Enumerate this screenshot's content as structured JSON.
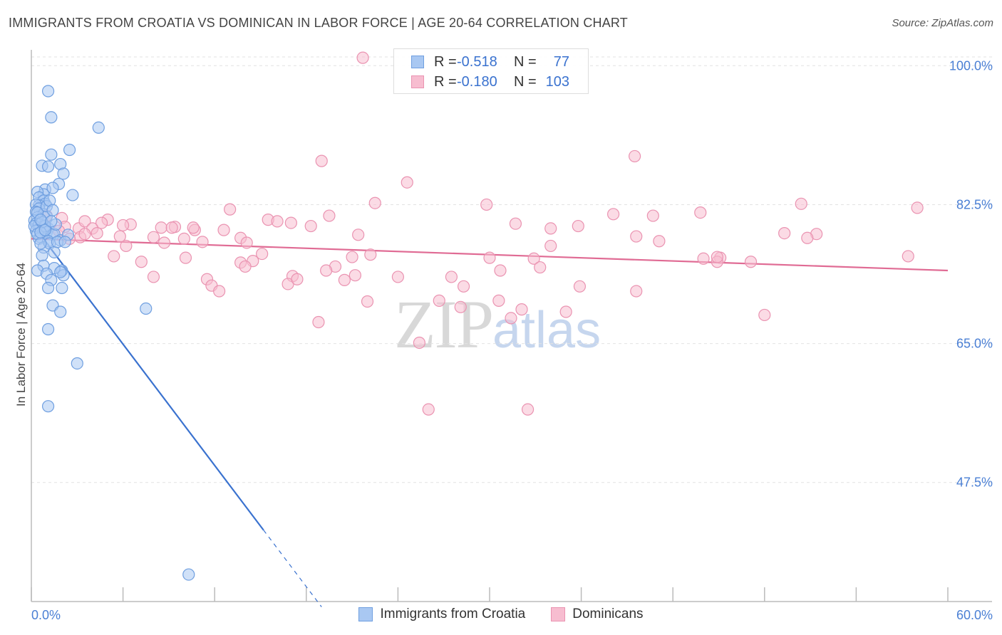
{
  "title": "IMMIGRANTS FROM CROATIA VS DOMINICAN IN LABOR FORCE | AGE 20-64 CORRELATION CHART",
  "source": "Source: ZipAtlas.com",
  "watermark": {
    "zip": "ZIP",
    "atlas": "atlas"
  },
  "legend": {
    "r_label": "R =",
    "n_label": "N =",
    "croatia": {
      "r": "-0.518",
      "n": "77"
    },
    "dominican": {
      "r": "-0.180",
      "n": "103"
    }
  },
  "colors": {
    "croatia_fill": "#a9c8f2",
    "croatia_stroke": "#6f9fe0",
    "croatia_line": "#3a72cf",
    "dominican_fill": "#f7bdd0",
    "dominican_stroke": "#ea93b1",
    "dominican_line": "#e06b94",
    "tick": "#4a7fd4"
  },
  "chart_data": {
    "type": "scatter",
    "title": "IMMIGRANTS FROM CROATIA VS DOMINICAN IN LABOR FORCE | AGE 20-64 CORRELATION CHART",
    "xlabel": "",
    "ylabel": "In Labor Force | Age 20-64",
    "xlim": [
      0,
      60
    ],
    "ylim": [
      32.5,
      102
    ],
    "x_ticks": [
      0,
      6,
      12,
      18,
      24,
      30,
      36,
      42,
      48,
      54,
      60
    ],
    "x_tick_labels": [
      {
        "value": 0,
        "label": "0.0%"
      },
      {
        "value": 60,
        "label": "60.0%"
      }
    ],
    "y_ticks": [
      {
        "value": 100,
        "label": "100.0%"
      },
      {
        "value": 82.5,
        "label": "82.5%"
      },
      {
        "value": 65,
        "label": "65.0%"
      },
      {
        "value": 47.5,
        "label": "47.5%"
      }
    ],
    "series": [
      {
        "name": "Immigrants from Croatia",
        "r": -0.518,
        "n": 77,
        "trend": {
          "x0": 0,
          "y0": 80.2,
          "x1": 15.2,
          "y1": 41.5,
          "dash_to_x": 19
        },
        "points": [
          [
            1.1,
            96.8
          ],
          [
            1.3,
            93.5
          ],
          [
            4.4,
            92.2
          ],
          [
            2.5,
            89.4
          ],
          [
            1.3,
            88.8
          ],
          [
            0.7,
            87.4
          ],
          [
            1.1,
            87.3
          ],
          [
            1.9,
            87.6
          ],
          [
            2.1,
            86.4
          ],
          [
            1.8,
            85.1
          ],
          [
            0.9,
            84.4
          ],
          [
            2.7,
            83.7
          ],
          [
            0.8,
            83.8
          ],
          [
            1.4,
            84.6
          ],
          [
            0.4,
            84.1
          ],
          [
            0.5,
            83.4
          ],
          [
            0.8,
            83.0
          ],
          [
            0.9,
            82.6
          ],
          [
            0.5,
            82.4
          ],
          [
            0.3,
            82.5
          ],
          [
            0.5,
            82.0
          ],
          [
            0.3,
            81.6
          ],
          [
            0.8,
            81.3
          ],
          [
            1.0,
            81.0
          ],
          [
            0.4,
            80.9
          ],
          [
            0.2,
            80.5
          ],
          [
            0.3,
            80.1
          ],
          [
            0.5,
            80.0
          ],
          [
            0.8,
            79.8
          ],
          [
            1.1,
            79.5
          ],
          [
            0.5,
            79.4
          ],
          [
            0.3,
            79.2
          ],
          [
            1.0,
            79.0
          ],
          [
            1.4,
            78.7
          ],
          [
            0.6,
            78.4
          ],
          [
            1.5,
            78.8
          ],
          [
            0.5,
            78.2
          ],
          [
            0.2,
            79.8
          ],
          [
            0.4,
            78.8
          ],
          [
            1.1,
            77.9
          ],
          [
            0.9,
            79.8
          ],
          [
            0.7,
            80.3
          ],
          [
            0.4,
            81.5
          ],
          [
            1.0,
            82.3
          ],
          [
            1.2,
            83.0
          ],
          [
            1.6,
            80.0
          ],
          [
            0.6,
            80.6
          ],
          [
            1.9,
            78.0
          ],
          [
            0.8,
            77.1
          ],
          [
            2.4,
            78.7
          ],
          [
            1.2,
            77.6
          ],
          [
            0.7,
            76.1
          ],
          [
            1.5,
            76.5
          ],
          [
            2.0,
            74.2
          ],
          [
            0.8,
            74.8
          ],
          [
            1.5,
            74.5
          ],
          [
            0.4,
            74.2
          ],
          [
            1.0,
            73.8
          ],
          [
            2.1,
            73.6
          ],
          [
            1.9,
            74.0
          ],
          [
            1.3,
            73.0
          ],
          [
            2.0,
            72.0
          ],
          [
            1.1,
            72.0
          ],
          [
            1.4,
            69.8
          ],
          [
            7.5,
            69.4
          ],
          [
            1.9,
            69.0
          ],
          [
            1.1,
            66.8
          ],
          [
            3.0,
            62.5
          ],
          [
            1.1,
            57.1
          ],
          [
            10.3,
            35.9
          ],
          [
            1.7,
            77.8
          ],
          [
            0.6,
            79.0
          ],
          [
            2.2,
            77.8
          ],
          [
            1.4,
            81.8
          ],
          [
            0.9,
            79.3
          ],
          [
            0.6,
            77.6
          ],
          [
            1.3,
            80.4
          ]
        ]
      },
      {
        "name": "Dominicans",
        "r": -0.18,
        "n": 103,
        "trend": {
          "x0": 0,
          "y0": 78.2,
          "x1": 60,
          "y1": 74.2
        },
        "points": [
          [
            21.7,
            101.0
          ],
          [
            19.0,
            88.0
          ],
          [
            39.5,
            88.6
          ],
          [
            24.6,
            85.3
          ],
          [
            22.5,
            82.7
          ],
          [
            29.8,
            82.5
          ],
          [
            38.1,
            81.3
          ],
          [
            50.4,
            82.6
          ],
          [
            40.7,
            81.1
          ],
          [
            43.8,
            81.5
          ],
          [
            58.0,
            82.1
          ],
          [
            31.7,
            80.1
          ],
          [
            34.0,
            79.5
          ],
          [
            35.8,
            79.8
          ],
          [
            49.3,
            78.9
          ],
          [
            51.4,
            78.8
          ],
          [
            39.6,
            78.5
          ],
          [
            41.1,
            77.9
          ],
          [
            34.0,
            77.3
          ],
          [
            19.5,
            81.1
          ],
          [
            13.0,
            81.9
          ],
          [
            15.5,
            80.6
          ],
          [
            16.1,
            80.4
          ],
          [
            18.3,
            79.8
          ],
          [
            17.0,
            80.2
          ],
          [
            21.4,
            78.7
          ],
          [
            5.0,
            80.6
          ],
          [
            4.6,
            80.2
          ],
          [
            6.5,
            80.0
          ],
          [
            8.5,
            79.6
          ],
          [
            9.4,
            79.7
          ],
          [
            9.2,
            79.6
          ],
          [
            10.7,
            79.3
          ],
          [
            12.6,
            79.3
          ],
          [
            13.7,
            78.3
          ],
          [
            1.0,
            81.1
          ],
          [
            2.0,
            80.8
          ],
          [
            2.2,
            79.7
          ],
          [
            3.1,
            79.5
          ],
          [
            3.5,
            80.4
          ],
          [
            4.0,
            79.5
          ],
          [
            4.3,
            78.9
          ],
          [
            3.2,
            78.4
          ],
          [
            1.8,
            79.2
          ],
          [
            2.5,
            78.2
          ],
          [
            5.8,
            78.5
          ],
          [
            8.0,
            78.4
          ],
          [
            10.0,
            78.2
          ],
          [
            11.2,
            77.8
          ],
          [
            10.6,
            79.6
          ],
          [
            6.2,
            77.3
          ],
          [
            8.7,
            77.7
          ],
          [
            14.1,
            77.7
          ],
          [
            15.1,
            76.3
          ],
          [
            22.2,
            76.2
          ],
          [
            21.0,
            75.9
          ],
          [
            30.0,
            75.8
          ],
          [
            32.9,
            75.7
          ],
          [
            44.0,
            75.7
          ],
          [
            45.1,
            75.8
          ],
          [
            57.4,
            76.0
          ],
          [
            5.4,
            76.0
          ],
          [
            7.2,
            75.3
          ],
          [
            10.1,
            75.8
          ],
          [
            13.7,
            75.2
          ],
          [
            14.5,
            75.4
          ],
          [
            14.0,
            74.7
          ],
          [
            19.9,
            74.7
          ],
          [
            19.3,
            74.2
          ],
          [
            17.1,
            73.5
          ],
          [
            21.2,
            73.6
          ],
          [
            30.7,
            74.2
          ],
          [
            33.3,
            74.6
          ],
          [
            44.9,
            75.3
          ],
          [
            47.1,
            75.3
          ],
          [
            8.0,
            73.4
          ],
          [
            11.5,
            73.1
          ],
          [
            20.5,
            73.0
          ],
          [
            24.0,
            73.4
          ],
          [
            27.5,
            73.4
          ],
          [
            16.8,
            72.5
          ],
          [
            17.4,
            73.1
          ],
          [
            11.8,
            72.3
          ],
          [
            12.3,
            71.6
          ],
          [
            28.3,
            72.2
          ],
          [
            35.9,
            72.2
          ],
          [
            39.6,
            71.6
          ],
          [
            22.0,
            70.3
          ],
          [
            26.7,
            70.4
          ],
          [
            30.6,
            70.4
          ],
          [
            28.1,
            69.6
          ],
          [
            32.1,
            69.3
          ],
          [
            35.0,
            69.0
          ],
          [
            31.4,
            68.2
          ],
          [
            48.0,
            68.6
          ],
          [
            18.8,
            67.7
          ],
          [
            25.4,
            65.1
          ],
          [
            26.0,
            56.7
          ],
          [
            32.5,
            56.7
          ],
          [
            44.9,
            75.9
          ],
          [
            50.8,
            78.3
          ],
          [
            3.5,
            78.8
          ],
          [
            6.0,
            79.9
          ]
        ]
      }
    ]
  },
  "bottom_legend": [
    {
      "label": "Immigrants from Croatia"
    },
    {
      "label": "Dominicans"
    }
  ]
}
